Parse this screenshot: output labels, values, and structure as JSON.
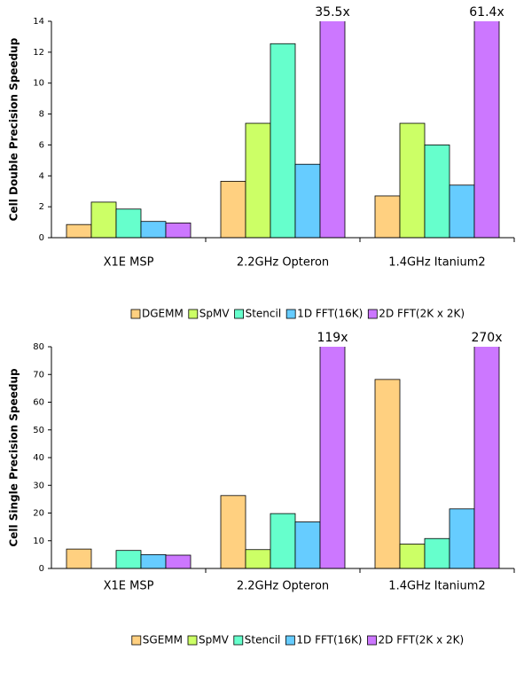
{
  "chart_data": [
    {
      "type": "bar",
      "y_label": "Cell Double Precision Speedup",
      "categories": [
        "X1E MSP",
        "2.2GHz Opteron",
        "1.4GHz Itanium2"
      ],
      "ylim": [
        0,
        14
      ],
      "yticks": [
        0,
        2,
        4,
        6,
        8,
        10,
        12,
        14
      ],
      "series": [
        {
          "name": "DGEMM",
          "color": "#ffd080",
          "values": [
            0.85,
            3.65,
            2.7
          ]
        },
        {
          "name": "SpMV",
          "color": "#ccff66",
          "values": [
            2.3,
            7.4,
            7.4
          ]
        },
        {
          "name": "Stencil",
          "color": "#66ffcc",
          "values": [
            1.85,
            12.55,
            6.0
          ]
        },
        {
          "name": "1D FFT(16K)",
          "color": "#66ccff",
          "values": [
            1.05,
            4.75,
            3.4
          ]
        },
        {
          "name": "2D FFT(2K x 2K)",
          "color": "#cc77ff",
          "values": [
            0.95,
            35.5,
            61.4
          ],
          "value_labels": [
            null,
            "35.5x",
            "61.4x"
          ]
        }
      ]
    },
    {
      "type": "bar",
      "y_label": "Cell Single Precision Speedup",
      "categories": [
        "X1E MSP",
        "2.2GHz Opteron",
        "1.4GHz Itanium2"
      ],
      "ylim": [
        0,
        80
      ],
      "yticks": [
        0,
        10,
        20,
        30,
        40,
        50,
        60,
        70,
        80
      ],
      "series": [
        {
          "name": "SGEMM",
          "color": "#ffd080",
          "values": [
            7,
            26.3,
            68.2
          ]
        },
        {
          "name": "SpMV",
          "color": "#ccff66",
          "values": [
            null,
            6.8,
            8.8
          ]
        },
        {
          "name": "Stencil",
          "color": "#66ffcc",
          "values": [
            6.5,
            19.8,
            10.8
          ]
        },
        {
          "name": "1D FFT(16K)",
          "color": "#66ccff",
          "values": [
            5,
            16.8,
            21.5
          ]
        },
        {
          "name": "2D FFT(2K x 2K)",
          "color": "#cc77ff",
          "values": [
            4.8,
            119,
            270
          ],
          "value_labels": [
            null,
            "119x",
            "270x"
          ]
        }
      ]
    }
  ]
}
